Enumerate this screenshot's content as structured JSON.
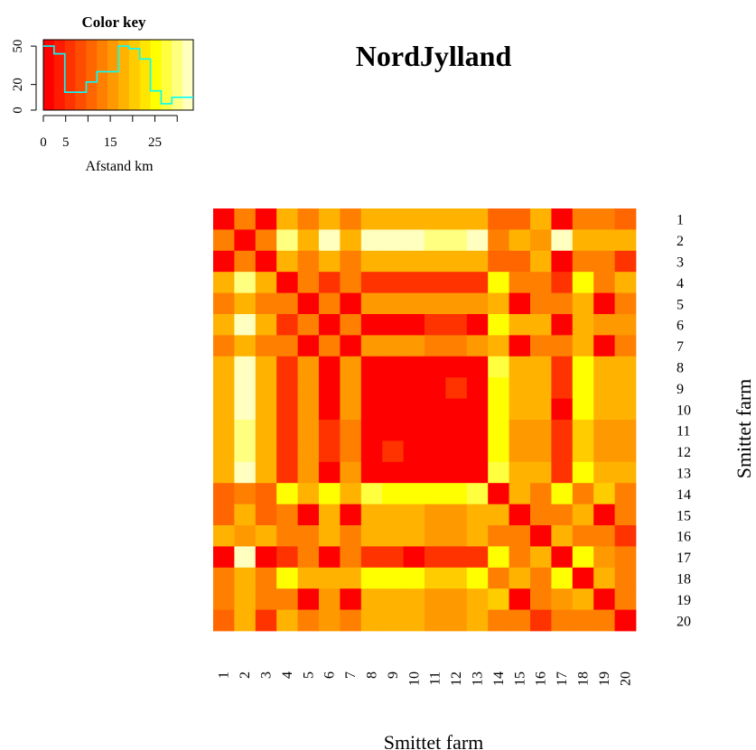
{
  "chart_data": {
    "type": "heatmap",
    "title": "NordJylland",
    "xlabel": "Smittet farm",
    "ylabel": "Smittet farm",
    "row_labels": [
      "1",
      "2",
      "3",
      "4",
      "5",
      "6",
      "7",
      "8",
      "9",
      "10",
      "11",
      "12",
      "13",
      "14",
      "15",
      "16",
      "17",
      "18",
      "19",
      "20"
    ],
    "col_labels": [
      "1",
      "2",
      "3",
      "4",
      "5",
      "6",
      "7",
      "8",
      "9",
      "10",
      "11",
      "12",
      "13",
      "14",
      "15",
      "16",
      "17",
      "18",
      "19",
      "20"
    ],
    "palette": [
      "#FF0000",
      "#FF1A00",
      "#FF3300",
      "#FF4D00",
      "#FF6600",
      "#FF8000",
      "#FF9900",
      "#FFB300",
      "#FFCC00",
      "#FFE500",
      "#FFFF00",
      "#FFFF40",
      "#FFFF80",
      "#FFFFBF"
    ],
    "color_bins_km": [
      0,
      2.4,
      4.8,
      7.2,
      9.6,
      12,
      14.4,
      16.8,
      19.2,
      21.6,
      24,
      26.4,
      28.8,
      31.2,
      33.6
    ],
    "values_km": [
      [
        0,
        14,
        2,
        19,
        14,
        19,
        14,
        19,
        19,
        19,
        19,
        19,
        19,
        10,
        11,
        19,
        0,
        12,
        14,
        11
      ],
      [
        14,
        0,
        12,
        31,
        19,
        33,
        19,
        33,
        33,
        33,
        31,
        31,
        33,
        14,
        19,
        16,
        33,
        19,
        19,
        18
      ],
      [
        2,
        12,
        0,
        19,
        12,
        19,
        12,
        19,
        19,
        19,
        19,
        19,
        19,
        11,
        11,
        19,
        2,
        12,
        14,
        7
      ],
      [
        19,
        31,
        19,
        0,
        12,
        5,
        12,
        7,
        7,
        7,
        7,
        7,
        7,
        26,
        14,
        12,
        7,
        26,
        12,
        19
      ],
      [
        14,
        19,
        12,
        12,
        0,
        14,
        2,
        16,
        16,
        16,
        16,
        16,
        16,
        19,
        0,
        14,
        12,
        19,
        2,
        14
      ],
      [
        19,
        33,
        19,
        5,
        14,
        0,
        14,
        2,
        2,
        2,
        5,
        5,
        2,
        26,
        19,
        19,
        0,
        19,
        16,
        16
      ],
      [
        14,
        19,
        12,
        12,
        2,
        14,
        0,
        16,
        16,
        16,
        14,
        14,
        16,
        19,
        2,
        14,
        12,
        19,
        0,
        14
      ],
      [
        19,
        33,
        19,
        7,
        16,
        2,
        16,
        0,
        2,
        2,
        2,
        2,
        2,
        28,
        19,
        19,
        5,
        24,
        19,
        19
      ],
      [
        19,
        33,
        19,
        7,
        16,
        2,
        16,
        2,
        0,
        0,
        2,
        5,
        2,
        26,
        19,
        19,
        5,
        24,
        19,
        19
      ],
      [
        19,
        33,
        19,
        7,
        16,
        2,
        16,
        2,
        0,
        0,
        2,
        2,
        2,
        26,
        19,
        19,
        2,
        24,
        19,
        19
      ],
      [
        19,
        31,
        19,
        7,
        16,
        5,
        14,
        2,
        2,
        2,
        0,
        0,
        2,
        26,
        16,
        16,
        5,
        21,
        16,
        16
      ],
      [
        19,
        31,
        19,
        7,
        16,
        5,
        14,
        2,
        5,
        2,
        0,
        0,
        2,
        26,
        16,
        16,
        5,
        21,
        16,
        16
      ],
      [
        19,
        33,
        19,
        7,
        16,
        2,
        16,
        2,
        2,
        2,
        2,
        2,
        0,
        28,
        19,
        19,
        5,
        24,
        19,
        19
      ],
      [
        10,
        14,
        11,
        26,
        19,
        26,
        19,
        28,
        26,
        26,
        26,
        26,
        28,
        0,
        19,
        14,
        26,
        12,
        21,
        14
      ],
      [
        11,
        19,
        11,
        14,
        0,
        19,
        2,
        19,
        19,
        19,
        16,
        16,
        19,
        19,
        0,
        14,
        14,
        19,
        2,
        14
      ],
      [
        19,
        16,
        19,
        12,
        14,
        19,
        14,
        19,
        19,
        19,
        16,
        16,
        19,
        14,
        14,
        0,
        19,
        12,
        12,
        5
      ],
      [
        0,
        33,
        2,
        7,
        12,
        0,
        12,
        5,
        5,
        2,
        5,
        5,
        5,
        26,
        14,
        19,
        0,
        24,
        16,
        14
      ],
      [
        12,
        19,
        12,
        26,
        19,
        19,
        19,
        24,
        24,
        24,
        21,
        21,
        24,
        12,
        19,
        12,
        24,
        0,
        19,
        12
      ],
      [
        14,
        19,
        14,
        12,
        2,
        16,
        0,
        19,
        19,
        19,
        16,
        16,
        19,
        21,
        2,
        12,
        16,
        19,
        0,
        14
      ],
      [
        11,
        18,
        7,
        19,
        14,
        16,
        14,
        19,
        19,
        19,
        16,
        16,
        19,
        14,
        14,
        5,
        14,
        12,
        14,
        0
      ]
    ]
  },
  "color_key": {
    "title": "Color key",
    "xlabel": "Afstand km",
    "x_ticks": [
      "0",
      "5",
      "15",
      "25"
    ],
    "x_tick_values": [
      0,
      5,
      15,
      25
    ],
    "y_ticks": [
      "0",
      "20",
      "50"
    ],
    "y_tick_values": [
      0,
      20,
      50
    ],
    "xlim": [
      0,
      33.6
    ],
    "ylim": [
      0,
      55
    ],
    "histogram_color": "#00FFFF",
    "histogram": {
      "bins": [
        0,
        2.4,
        4.8,
        7.2,
        9.6,
        12,
        14.4,
        16.8,
        19.2,
        21.6,
        24,
        26.4,
        28.8,
        31.2,
        33.6
      ],
      "counts": [
        50,
        44,
        14,
        14,
        22,
        30,
        30,
        50,
        48,
        40,
        15,
        5,
        10,
        10
      ]
    }
  }
}
